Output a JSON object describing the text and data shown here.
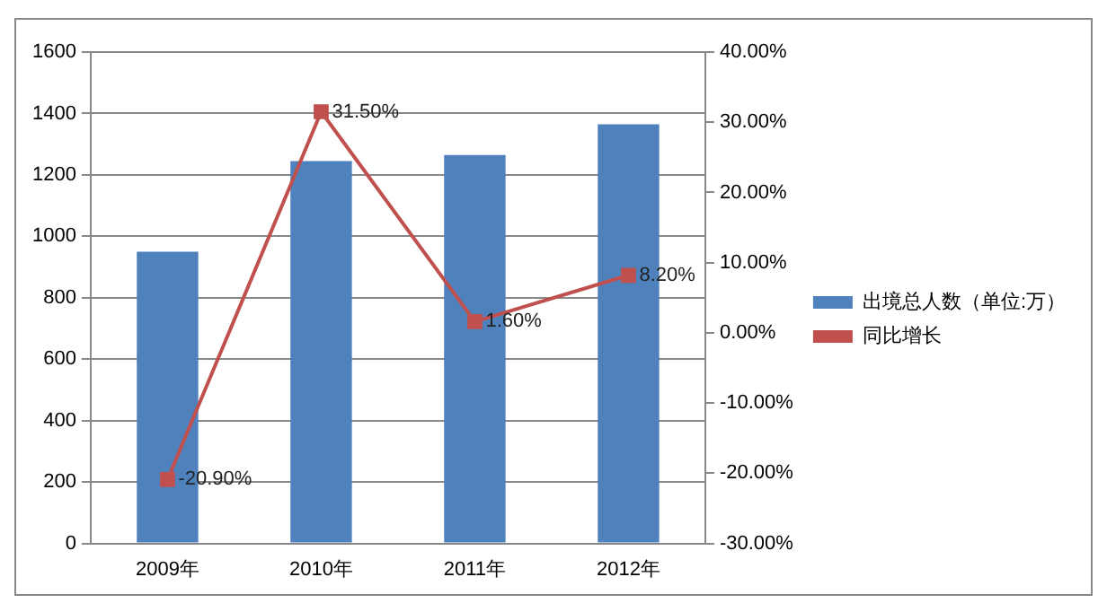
{
  "chart_data": {
    "type": "bar",
    "categories": [
      "2009年",
      "2010年",
      "2011年",
      "2012年"
    ],
    "series": [
      {
        "name": "出境总人数（单位:万）",
        "color": "#4f81bd",
        "values": [
          950,
          1245,
          1265,
          1365
        ]
      },
      {
        "name": "同比增长",
        "type": "line",
        "axis": "y2",
        "color": "#c0504d",
        "values": [
          -20.9,
          31.5,
          1.6,
          8.2
        ],
        "value_labels": [
          "-20.90%",
          "31.50%",
          "1.60%",
          "8.20%"
        ]
      }
    ],
    "ylim": [
      0,
      1600
    ],
    "yticks": [
      0,
      200,
      400,
      600,
      800,
      1000,
      1200,
      1400,
      1600
    ],
    "y2lim": [
      -30,
      40
    ],
    "y2ticks": [
      {
        "value": -30,
        "label": "-30.00%"
      },
      {
        "value": -20,
        "label": "-20.00%"
      },
      {
        "value": -10,
        "label": "-10.00%"
      },
      {
        "value": 0,
        "label": "0.00%"
      },
      {
        "value": 10,
        "label": "10.00%"
      },
      {
        "value": 20,
        "label": "20.00%"
      },
      {
        "value": 30,
        "label": "30.00%"
      },
      {
        "value": 40,
        "label": "40.00%"
      }
    ],
    "grid": "y",
    "legend": "right",
    "marker": "square"
  }
}
